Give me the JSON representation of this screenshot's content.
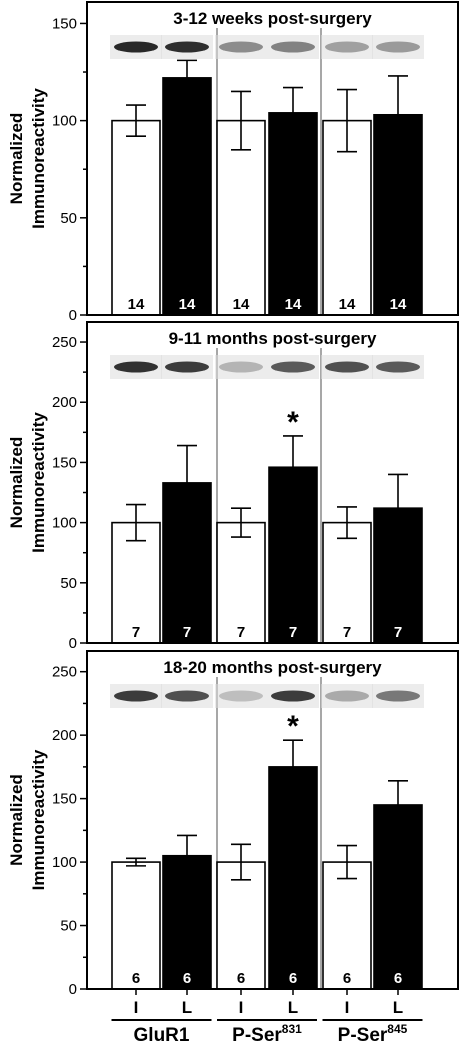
{
  "colors": {
    "control_bar": "#ffffff",
    "lesion_bar": "#000000",
    "blot_dark": "#333333",
    "divider": "#8a8a8a"
  },
  "y_axis_label_line1": "Normalized",
  "y_axis_label_line2": "Immunoreactivity",
  "x_category_labels": [
    "I",
    "L",
    "I",
    "L",
    "I",
    "L"
  ],
  "groups": [
    {
      "name": "GluR1",
      "sup": ""
    },
    {
      "name": "P-Ser",
      "sup": "831"
    },
    {
      "name": "P-Ser",
      "sup": "845"
    }
  ],
  "chart_data": [
    {
      "type": "bar",
      "title": "3-12 weeks post-surgery",
      "ylabel": "Normalized Immunoreactivity",
      "ylim": [
        0,
        160
      ],
      "yticks": [
        0,
        50,
        100,
        150
      ],
      "categories": [
        "I",
        "L",
        "I",
        "L",
        "I",
        "L"
      ],
      "groups": [
        "GluR1",
        "P-Ser831",
        "P-Ser845"
      ],
      "values": [
        100,
        122,
        100,
        104,
        100,
        103
      ],
      "errors": [
        8,
        9,
        15,
        13,
        16,
        20
      ],
      "n": [
        "14",
        "14",
        "14",
        "14",
        "14",
        "14"
      ],
      "significant": [
        false,
        false,
        false,
        false,
        false,
        false
      ],
      "blot_intensity": [
        0.95,
        0.92,
        0.45,
        0.5,
        0.35,
        0.38
      ]
    },
    {
      "type": "bar",
      "title": "9-11 months post-surgery",
      "ylabel": "Normalized Immunoreactivity",
      "ylim": [
        0,
        260
      ],
      "yticks": [
        0,
        50,
        100,
        150,
        200,
        250
      ],
      "categories": [
        "I",
        "L",
        "I",
        "L",
        "I",
        "L"
      ],
      "groups": [
        "GluR1",
        "P-Ser831",
        "P-Ser845"
      ],
      "values": [
        100,
        133,
        100,
        146,
        100,
        112
      ],
      "errors": [
        15,
        31,
        12,
        26,
        13,
        28
      ],
      "n": [
        "7",
        "7",
        "7",
        "7",
        "7",
        "7"
      ],
      "significant": [
        false,
        false,
        false,
        true,
        false,
        false
      ],
      "blot_intensity": [
        0.9,
        0.85,
        0.25,
        0.7,
        0.75,
        0.7
      ]
    },
    {
      "type": "bar",
      "title": "18-20 months post-surgery",
      "ylabel": "Normalized Immunoreactivity",
      "ylim": [
        0,
        260
      ],
      "yticks": [
        0,
        50,
        100,
        150,
        200,
        250
      ],
      "categories": [
        "I",
        "L",
        "I",
        "L",
        "I",
        "L"
      ],
      "groups": [
        "GluR1",
        "P-Ser831",
        "P-Ser845"
      ],
      "values": [
        100,
        105,
        100,
        175,
        100,
        145
      ],
      "errors": [
        3,
        16,
        14,
        21,
        13,
        19
      ],
      "n": [
        "6",
        "6",
        "6",
        "6",
        "6",
        "6"
      ],
      "significant": [
        false,
        false,
        false,
        true,
        false,
        false
      ],
      "blot_intensity": [
        0.85,
        0.75,
        0.2,
        0.85,
        0.3,
        0.55
      ]
    }
  ]
}
